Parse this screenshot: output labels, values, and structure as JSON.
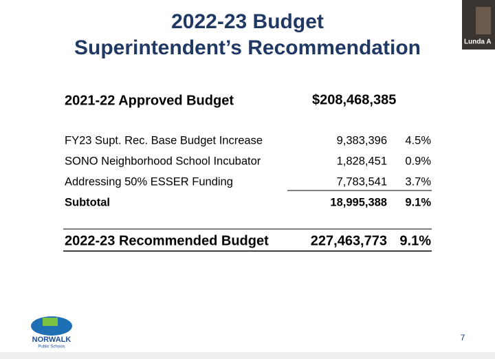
{
  "slide": {
    "title_lines": [
      "2022-23 Budget",
      "Superintendent’s Recommendation"
    ],
    "approved": {
      "label": "2021-22 Approved Budget",
      "amount": "$208,468,385"
    },
    "items": [
      {
        "label": "FY23 Supt. Rec.  Base Budget Increase",
        "amount": "9,383,396",
        "percent": "4.5%"
      },
      {
        "label": "SONO Neighborhood School Incubator",
        "amount": "1,828,451",
        "percent": "0.9%"
      },
      {
        "label": "Addressing 50% ESSER Funding",
        "amount": "7,783,541",
        "percent": "3.7%"
      }
    ],
    "subtotal": {
      "label": "Subtotal",
      "amount": "18,995,388",
      "percent": "9.1%"
    },
    "total": {
      "label": "2022-23 Recommended Budget",
      "amount": "227,463,773",
      "percent": "9.1%"
    },
    "logo": {
      "name": "NORWALK",
      "subtitle": "Public Schools"
    },
    "page_number": "7"
  },
  "participant": {
    "name": "Lunda A"
  }
}
